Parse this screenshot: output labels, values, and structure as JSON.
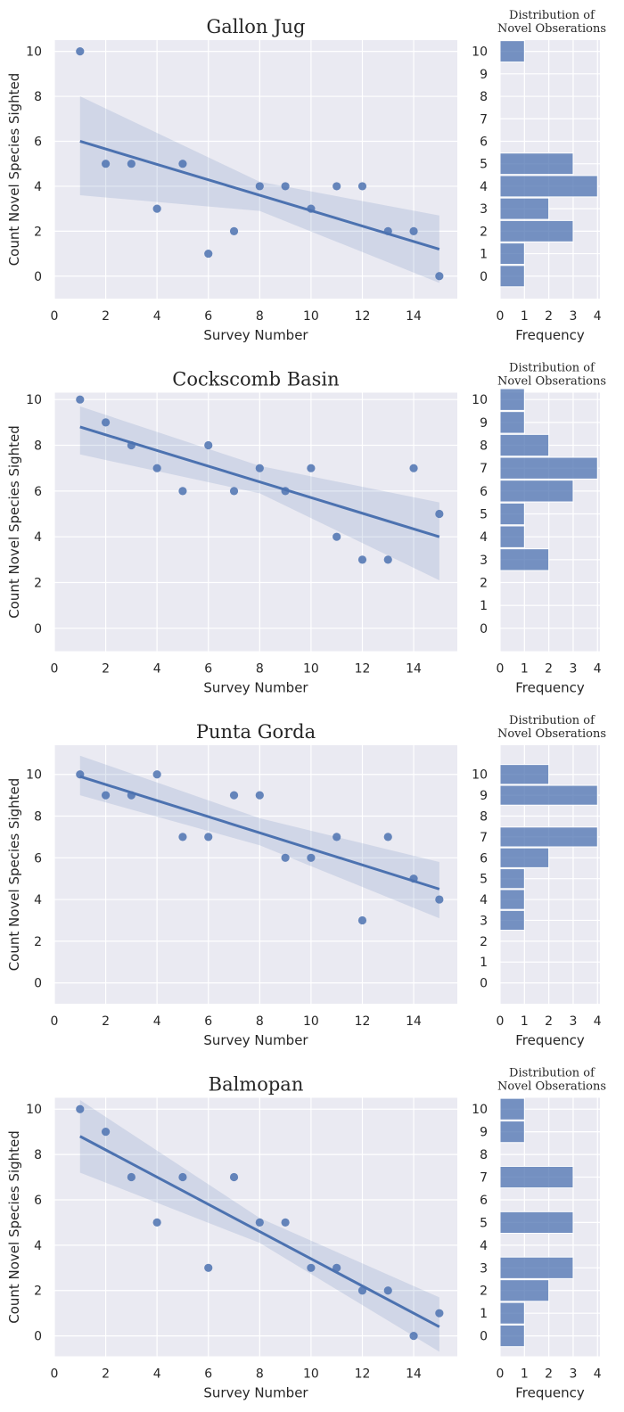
{
  "theme": {
    "panel_bg": "#eaeaf2",
    "grid_color": "#ffffff",
    "point_color": "#4c72b0",
    "line_color": "#4c72b0",
    "band_color": "#4c72b0",
    "bar_color": "#4c72b0",
    "text_color": "#262626"
  },
  "chart_data": [
    {
      "type": "scatter",
      "title": "Gallon Jug",
      "xlabel": "Survey Number",
      "ylabel": "Count Novel Species Sighted",
      "xlim": [
        0,
        15.7
      ],
      "ylim": [
        -1,
        10.5
      ],
      "xticks": [
        0,
        2,
        4,
        6,
        8,
        10,
        12,
        14
      ],
      "yticks": [
        0,
        2,
        4,
        6,
        8,
        10
      ],
      "grid": true,
      "x": [
        1,
        2,
        3,
        4,
        5,
        6,
        7,
        8,
        9,
        10,
        11,
        12,
        13,
        14,
        15
      ],
      "y": [
        10,
        5,
        5,
        3,
        5,
        1,
        2,
        4,
        4,
        3,
        4,
        4,
        2,
        2,
        0
      ],
      "regression": {
        "x": [
          1,
          15
        ],
        "y": [
          6.0,
          1.2
        ]
      },
      "confidence_band": {
        "x": [
          1,
          8,
          15
        ],
        "lower": [
          3.6,
          2.9,
          -0.3
        ],
        "upper": [
          8.0,
          4.2,
          2.7
        ]
      },
      "histogram": {
        "title": "Distribution of\nNovel Obserations",
        "xlabel": "Frequency",
        "xlim": [
          0,
          4.1
        ],
        "xticks": [
          0,
          1,
          2,
          3,
          4
        ],
        "categories": [
          0,
          1,
          2,
          3,
          4,
          5,
          6,
          7,
          8,
          9,
          10
        ],
        "values": [
          1,
          1,
          3,
          2,
          4,
          3,
          0,
          0,
          0,
          0,
          1
        ]
      }
    },
    {
      "type": "scatter",
      "title": "Cockscomb Basin",
      "xlabel": "Survey Number",
      "ylabel": "Count Novel Species Sighted",
      "xlim": [
        0,
        15.7
      ],
      "ylim": [
        -1,
        10.3
      ],
      "xticks": [
        0,
        2,
        4,
        6,
        8,
        10,
        12,
        14
      ],
      "yticks": [
        0,
        2,
        4,
        6,
        8,
        10
      ],
      "grid": true,
      "x": [
        1,
        2,
        3,
        4,
        5,
        6,
        7,
        8,
        9,
        10,
        11,
        12,
        13,
        14,
        15
      ],
      "y": [
        10,
        9,
        8,
        7,
        6,
        8,
        6,
        7,
        6,
        7,
        4,
        3,
        3,
        7,
        5
      ],
      "regression": {
        "x": [
          1,
          15
        ],
        "y": [
          8.8,
          4.0
        ]
      },
      "confidence_band": {
        "x": [
          1,
          8,
          15
        ],
        "lower": [
          7.6,
          5.9,
          2.1
        ],
        "upper": [
          9.7,
          7.1,
          5.5
        ]
      },
      "histogram": {
        "title": "Distribution of\nNovel Obserations",
        "xlabel": "Frequency",
        "xlim": [
          0,
          4.1
        ],
        "xticks": [
          0,
          1,
          2,
          3,
          4
        ],
        "categories": [
          0,
          1,
          2,
          3,
          4,
          5,
          6,
          7,
          8,
          9,
          10
        ],
        "values": [
          0,
          0,
          0,
          2,
          1,
          1,
          3,
          4,
          2,
          1,
          1
        ]
      }
    },
    {
      "type": "scatter",
      "title": "Punta Gorda",
      "xlabel": "Survey Number",
      "ylabel": "Count Novel Species Sighted",
      "xlim": [
        0,
        15.7
      ],
      "ylim": [
        -1,
        11.4
      ],
      "xticks": [
        0,
        2,
        4,
        6,
        8,
        10,
        12,
        14
      ],
      "yticks": [
        0,
        2,
        4,
        6,
        8,
        10
      ],
      "grid": true,
      "x": [
        1,
        2,
        3,
        4,
        5,
        6,
        7,
        8,
        9,
        10,
        11,
        12,
        13,
        14,
        15
      ],
      "y": [
        10,
        9,
        9,
        10,
        7,
        7,
        9,
        9,
        6,
        6,
        7,
        3,
        7,
        5,
        4
      ],
      "regression": {
        "x": [
          1,
          15
        ],
        "y": [
          9.9,
          4.5
        ]
      },
      "confidence_band": {
        "x": [
          1,
          8,
          15
        ],
        "lower": [
          9.0,
          6.6,
          3.1
        ],
        "upper": [
          10.9,
          7.9,
          5.8
        ]
      },
      "histogram": {
        "title": "Distribution of\nNovel Obserations",
        "xlabel": "Frequency",
        "xlim": [
          0,
          4.1
        ],
        "xticks": [
          0,
          1,
          2,
          3,
          4
        ],
        "categories": [
          0,
          1,
          2,
          3,
          4,
          5,
          6,
          7,
          8,
          9,
          10
        ],
        "values": [
          0,
          0,
          0,
          1,
          1,
          1,
          2,
          4,
          0,
          4,
          2
        ]
      }
    },
    {
      "type": "scatter",
      "title": "Balmopan",
      "xlabel": "Survey Number",
      "ylabel": "Count Novel Species Sighted",
      "xlim": [
        0,
        15.7
      ],
      "ylim": [
        -0.9,
        10.5
      ],
      "xticks": [
        0,
        2,
        4,
        6,
        8,
        10,
        12,
        14
      ],
      "yticks": [
        0,
        2,
        4,
        6,
        8,
        10
      ],
      "grid": true,
      "x": [
        1,
        2,
        3,
        4,
        5,
        6,
        7,
        8,
        9,
        10,
        11,
        12,
        13,
        14,
        15
      ],
      "y": [
        10,
        9,
        7,
        5,
        7,
        3,
        7,
        5,
        5,
        3,
        3,
        2,
        2,
        0,
        1
      ],
      "regression": {
        "x": [
          1,
          15
        ],
        "y": [
          8.8,
          0.4
        ]
      },
      "confidence_band": {
        "x": [
          1,
          8,
          15
        ],
        "lower": [
          7.2,
          4.1,
          -0.7
        ],
        "upper": [
          10.4,
          5.2,
          1.7
        ]
      },
      "histogram": {
        "title": "Distribution of\nNovel Obserations",
        "xlabel": "Frequency",
        "xlim": [
          0,
          4.1
        ],
        "xticks": [
          0,
          1,
          2,
          3,
          4
        ],
        "categories": [
          0,
          1,
          2,
          3,
          4,
          5,
          6,
          7,
          8,
          9,
          10
        ],
        "values": [
          1,
          1,
          2,
          3,
          0,
          3,
          0,
          3,
          0,
          1,
          1
        ]
      }
    }
  ]
}
